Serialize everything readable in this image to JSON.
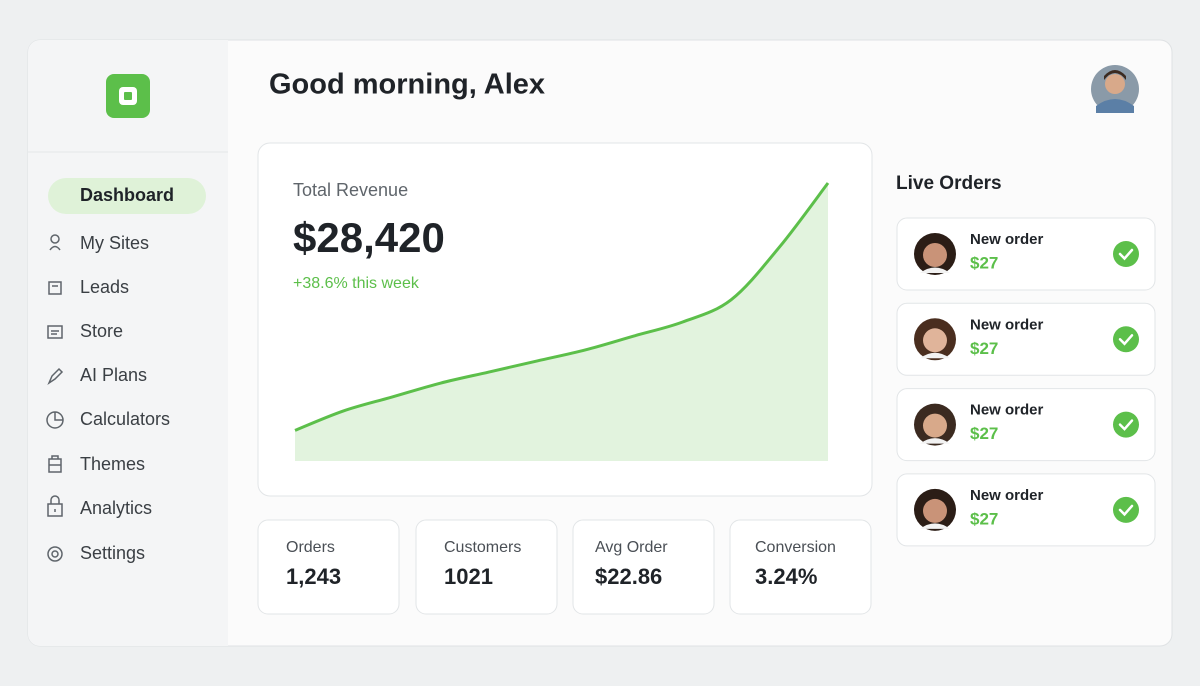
{
  "header": {
    "title": "Good morning, Alex"
  },
  "sidebar": {
    "nav": [
      "Dashboard",
      "My Sites",
      "Leads",
      "Store",
      "AI Plans",
      "Calculators",
      "Themes",
      "Analytics",
      "Settings"
    ]
  },
  "revenue": {
    "label": "Total Revenue",
    "value": "$28,420",
    "change": "+38.6% this week",
    "chart": {
      "type": "area",
      "values": [
        11,
        18,
        23,
        28,
        32,
        36,
        40,
        45,
        50,
        58,
        77,
        100
      ],
      "ylim": [
        0,
        100
      ],
      "color": "#5cbf4a"
    }
  },
  "stats": [
    {
      "label": "Orders",
      "value": "1,243"
    },
    {
      "label": "Customers",
      "value": "1021"
    },
    {
      "label": "Avg Order",
      "value": "$22.86"
    },
    {
      "label": "Conversion",
      "value": "3.24%"
    }
  ],
  "live_orders": {
    "title": "Live Orders",
    "orders": [
      {
        "label": "New order",
        "amount": "$27"
      },
      {
        "label": "New order",
        "amount": "$27"
      },
      {
        "label": "New order",
        "amount": "$27"
      },
      {
        "label": "New order",
        "amount": "$27"
      }
    ]
  }
}
